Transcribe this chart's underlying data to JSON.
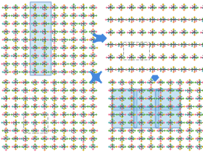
{
  "bg_color": "#ffffff",
  "arrow_color": "#4488dd",
  "mol_dark": "#555566",
  "mol_green": "#55aa33",
  "mol_pink": "#ee6688",
  "mol_yellow": "#ccaa00",
  "mol_orange": "#ee8833",
  "mol_teal": "#44aaaa",
  "highlight_blue_fill": "#99ccee",
  "highlight_blue_edge": "#4477bb",
  "highlight_gray_edge": "#aaaaaa"
}
